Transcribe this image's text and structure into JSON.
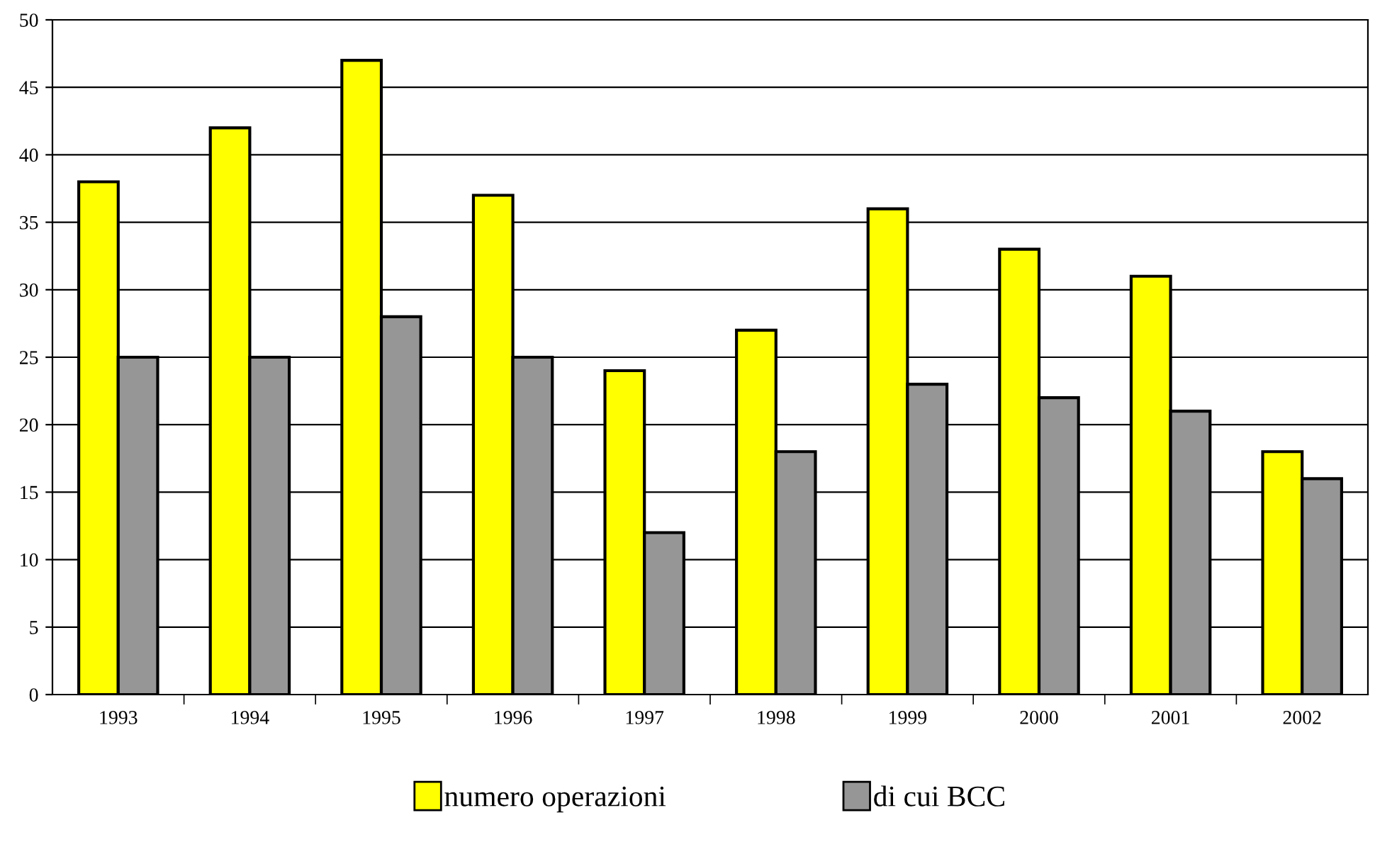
{
  "chart_data": {
    "type": "bar",
    "categories": [
      "1993",
      "1994",
      "1995",
      "1996",
      "1997",
      "1998",
      "1999",
      "2000",
      "2001",
      "2002"
    ],
    "series": [
      {
        "name": "numero operazioni",
        "color": "#ffff00",
        "values": [
          38,
          42,
          47,
          37,
          24,
          27,
          36,
          33,
          31,
          18
        ]
      },
      {
        "name": "di cui BCC",
        "color": "#969696",
        "values": [
          25,
          25,
          28,
          25,
          12,
          18,
          23,
          22,
          21,
          16
        ]
      }
    ],
    "ylim": [
      0,
      50
    ],
    "yticks": [
      0,
      5,
      10,
      15,
      20,
      25,
      30,
      35,
      40,
      45,
      50
    ],
    "grid": "y",
    "legend": "bottom"
  }
}
